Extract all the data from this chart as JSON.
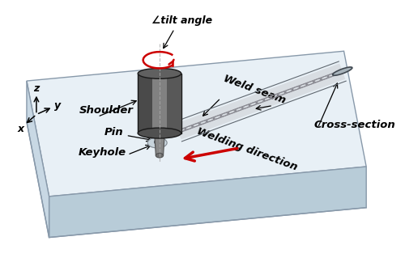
{
  "bg_color": "#ffffff",
  "labels": {
    "tilt_angle": "∠tilt angle",
    "shoulder": "Shoulder",
    "pin": "Pin",
    "keyhole": "Keyhole",
    "weld_seam": "Weld seam",
    "welding_direction": "Welding direction",
    "cross_section": "Cross-section"
  },
  "plate_top": "#d8e4ee",
  "plate_top2": "#e8f0f6",
  "plate_side_front": "#b8ccd8",
  "plate_side_left": "#c8d8e4",
  "plate_edge": "#8899aa",
  "tool_dark": "#2a2a2a",
  "tool_mid": "#686868",
  "tool_light": "#c8c8c8",
  "tool_edge": "#181818",
  "weld_color": "#c0c8d0",
  "weld_rib": "#888890",
  "red_color": "#cc0000",
  "black": "#000000",
  "figsize": [
    5.0,
    3.19
  ],
  "dpi": 100
}
